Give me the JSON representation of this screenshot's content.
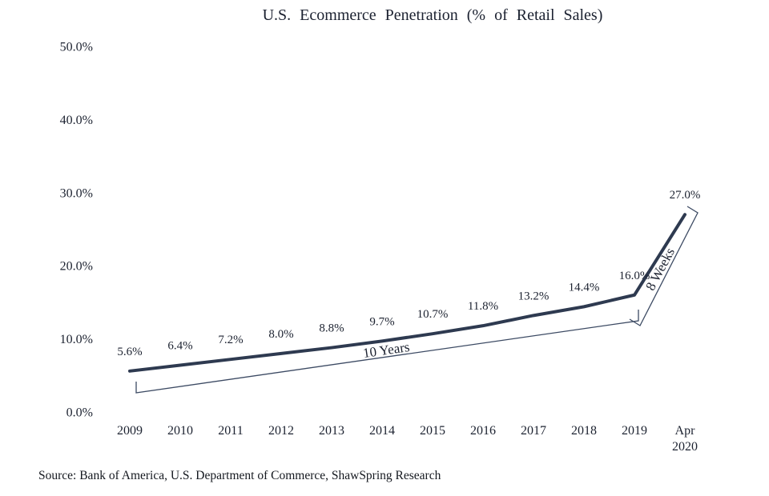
{
  "chart_data": {
    "type": "line",
    "title": "U.S. Ecommerce Penetration (% of Retail Sales)",
    "categories": [
      "2009",
      "2010",
      "2011",
      "2012",
      "2013",
      "2014",
      "2015",
      "2016",
      "2017",
      "2018",
      "2019",
      "Apr 2020"
    ],
    "values": [
      5.6,
      6.4,
      7.2,
      8.0,
      8.8,
      9.7,
      10.7,
      11.8,
      13.2,
      14.4,
      16.0,
      27.0
    ],
    "data_labels": [
      "5.6%",
      "6.4%",
      "7.2%",
      "8.0%",
      "8.8%",
      "9.7%",
      "10.7%",
      "11.8%",
      "13.2%",
      "14.4%",
      "16.0%",
      "27.0%"
    ],
    "y_ticks": [
      "50.0%",
      "40.0%",
      "30.0%",
      "20.0%",
      "10.0%",
      "0.0%"
    ],
    "ylim": [
      0,
      50
    ],
    "grid": false,
    "legend": false,
    "line_color": "#2e3a50",
    "bracket_color": "#3c4a63",
    "annotations": [
      "10 Years",
      "8 Weeks"
    ]
  },
  "source": "Source: Bank of America, U.S. Department of Commerce, ShawSpring Research"
}
